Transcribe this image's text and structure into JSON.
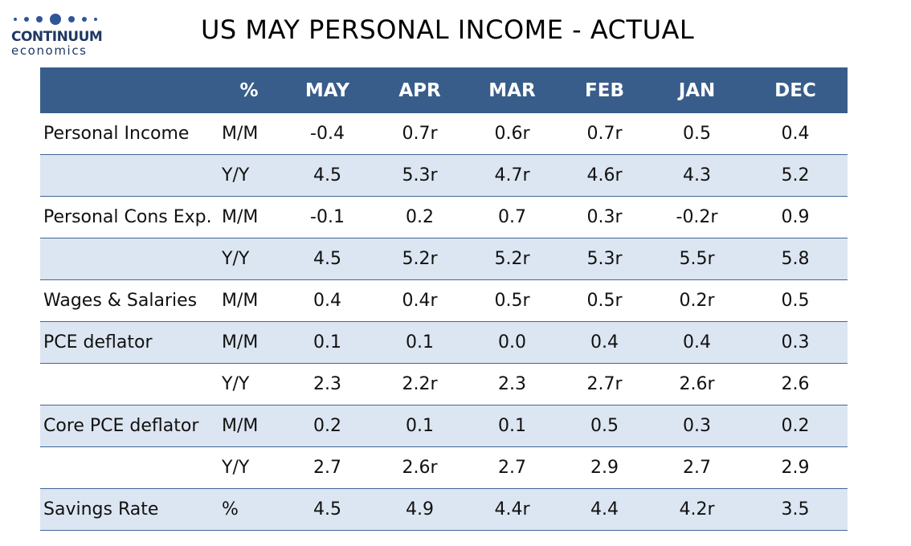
{
  "brand": {
    "name": "CONTINUUM",
    "sub": "economics",
    "color": "#1f3864"
  },
  "title": "US MAY PERSONAL INCOME - ACTUAL",
  "chart_data": {
    "type": "table",
    "title": "US MAY PERSONAL INCOME - ACTUAL",
    "columns": [
      "",
      "%",
      "MAY",
      "APR",
      "MAR",
      "FEB",
      "JAN",
      "DEC"
    ],
    "header_color": "#385d8a",
    "shade_color": "#dce6f2",
    "rows": [
      {
        "label": "Personal Income",
        "unit": "M/M",
        "values": [
          "-0.4",
          "0.7r",
          "0.6r",
          "0.7r",
          "0.5",
          "0.4"
        ],
        "shaded": false
      },
      {
        "label": "",
        "unit": "Y/Y",
        "values": [
          "4.5",
          "5.3r",
          "4.7r",
          "4.6r",
          "4.3",
          "5.2"
        ],
        "shaded": true
      },
      {
        "label": "Personal Cons Exp.",
        "unit": "M/M",
        "values": [
          "-0.1",
          "0.2",
          "0.7",
          "0.3r",
          "-0.2r",
          "0.9"
        ],
        "shaded": false
      },
      {
        "label": "",
        "unit": "Y/Y",
        "values": [
          "4.5",
          "5.2r",
          "5.2r",
          "5.3r",
          "5.5r",
          "5.8"
        ],
        "shaded": true
      },
      {
        "label": "Wages & Salaries",
        "unit": "M/M",
        "values": [
          "0.4",
          "0.4r",
          "0.5r",
          "0.5r",
          "0.2r",
          "0.5"
        ],
        "shaded": false
      },
      {
        "label": "PCE deflator",
        "unit": "M/M",
        "values": [
          "0.1",
          "0.1",
          "0.0",
          "0.4",
          "0.4",
          "0.3"
        ],
        "shaded": true
      },
      {
        "label": "",
        "unit": "Y/Y",
        "values": [
          "2.3",
          "2.2r",
          "2.3",
          "2.7r",
          "2.6r",
          "2.6"
        ],
        "shaded": false
      },
      {
        "label": "Core PCE deflator",
        "unit": "M/M",
        "values": [
          "0.2",
          "0.1",
          "0.1",
          "0.5",
          "0.3",
          "0.2"
        ],
        "shaded": true
      },
      {
        "label": "",
        "unit": "Y/Y",
        "values": [
          "2.7",
          "2.6r",
          "2.7",
          "2.9",
          "2.7",
          "2.9"
        ],
        "shaded": false
      },
      {
        "label": "Savings Rate",
        "unit": "%",
        "values": [
          "4.5",
          "4.9",
          "4.4r",
          "4.4",
          "4.2r",
          "3.5"
        ],
        "shaded": true
      }
    ]
  }
}
